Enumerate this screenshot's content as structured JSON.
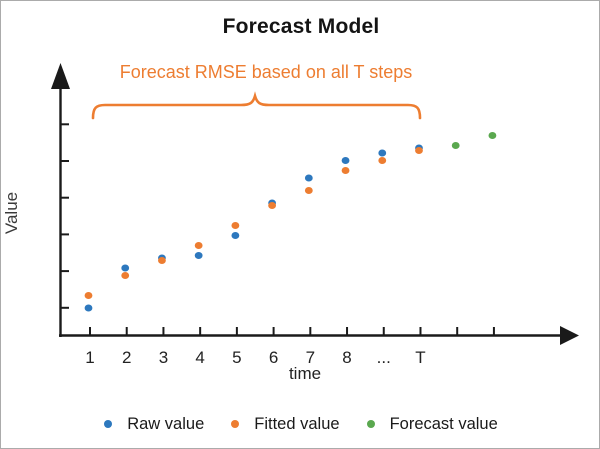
{
  "window": {
    "background": "#ffffff",
    "border_color": "#ababab"
  },
  "title": "Forecast Model",
  "annotation": {
    "text": "Forecast RMSE based on all T steps",
    "color": "#ED7D31"
  },
  "axes": {
    "y_label": "Value",
    "x_label": "time",
    "axis_color": "#1a1a1a",
    "y_tick_count": 6
  },
  "chart_data": {
    "type": "scatter",
    "title": "Forecast Model",
    "xlabel": "time",
    "ylabel": "Value",
    "x_categories": [
      "1",
      "2",
      "3",
      "4",
      "5",
      "6",
      "7",
      "8",
      "...",
      "T",
      "",
      ""
    ],
    "series": [
      {
        "name": "Raw value",
        "color": "#2D78BE",
        "x_indices": [
          0,
          1,
          2,
          3,
          4,
          5,
          6,
          7,
          8,
          9
        ],
        "values": [
          1.1,
          2.7,
          3.1,
          3.2,
          4.0,
          5.3,
          6.3,
          7.0,
          7.3,
          7.5
        ]
      },
      {
        "name": "Fitted value",
        "color": "#ED7D31",
        "x_indices": [
          0,
          1,
          2,
          3,
          4,
          5,
          6,
          7,
          8,
          9
        ],
        "values": [
          1.6,
          2.4,
          3.0,
          3.6,
          4.4,
          5.2,
          5.8,
          6.6,
          7.0,
          7.4
        ]
      },
      {
        "name": "Forecast value",
        "color": "#5AA84F",
        "x_indices": [
          10,
          11
        ],
        "values": [
          7.6,
          8.0
        ]
      }
    ],
    "ylim": [
      0,
      10.7
    ],
    "grid": false,
    "legend_position": "bottom",
    "annotation_text": "Forecast RMSE based on all T steps",
    "annotation_span_steps": "1 to T"
  },
  "legend": [
    {
      "label": "Raw value",
      "color": "#2D78BE"
    },
    {
      "label": "Fitted value",
      "color": "#ED7D31"
    },
    {
      "label": "Forecast value",
      "color": "#5AA84F"
    }
  ]
}
